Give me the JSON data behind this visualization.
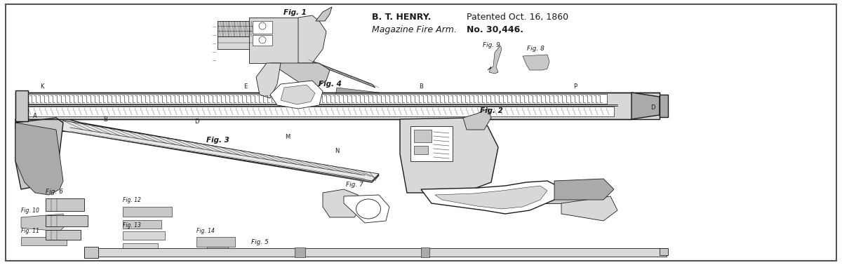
{
  "fig_width": 12.0,
  "fig_height": 3.78,
  "dpi": 100,
  "bg_color": "#ffffff",
  "border_color": "#555555",
  "draw_color": "#1a1a1a",
  "gray_fill": "#d8d8d8",
  "dark_fill": "#aaaaaa",
  "mid_fill": "#c8c8c8",
  "patent_author": "B. T. HENRY.",
  "patent_date": "Patented Oct. 16, 1860",
  "patent_subtitle": "Magazine Fire Arm.",
  "patent_number": "No. 30,446.",
  "fig1_label": "Fig. 1",
  "fig2_label": "Fig. 2",
  "fig3_label": "Fig. 3",
  "fig4_label": "Fig. 4",
  "fig5_label": "Fig. 5",
  "fig6_label": "Fig. 6",
  "fig7_label": "Fig. 7",
  "fig8_label": "Fig. 8",
  "fig9_label": "Fig. 9",
  "fig10_label": "Fig. 10",
  "fig11_label": "Fig. 11",
  "fig12_label": "Fig. 12",
  "fig13_label": "Fig. 13",
  "fig14_label": "Fig. 14"
}
